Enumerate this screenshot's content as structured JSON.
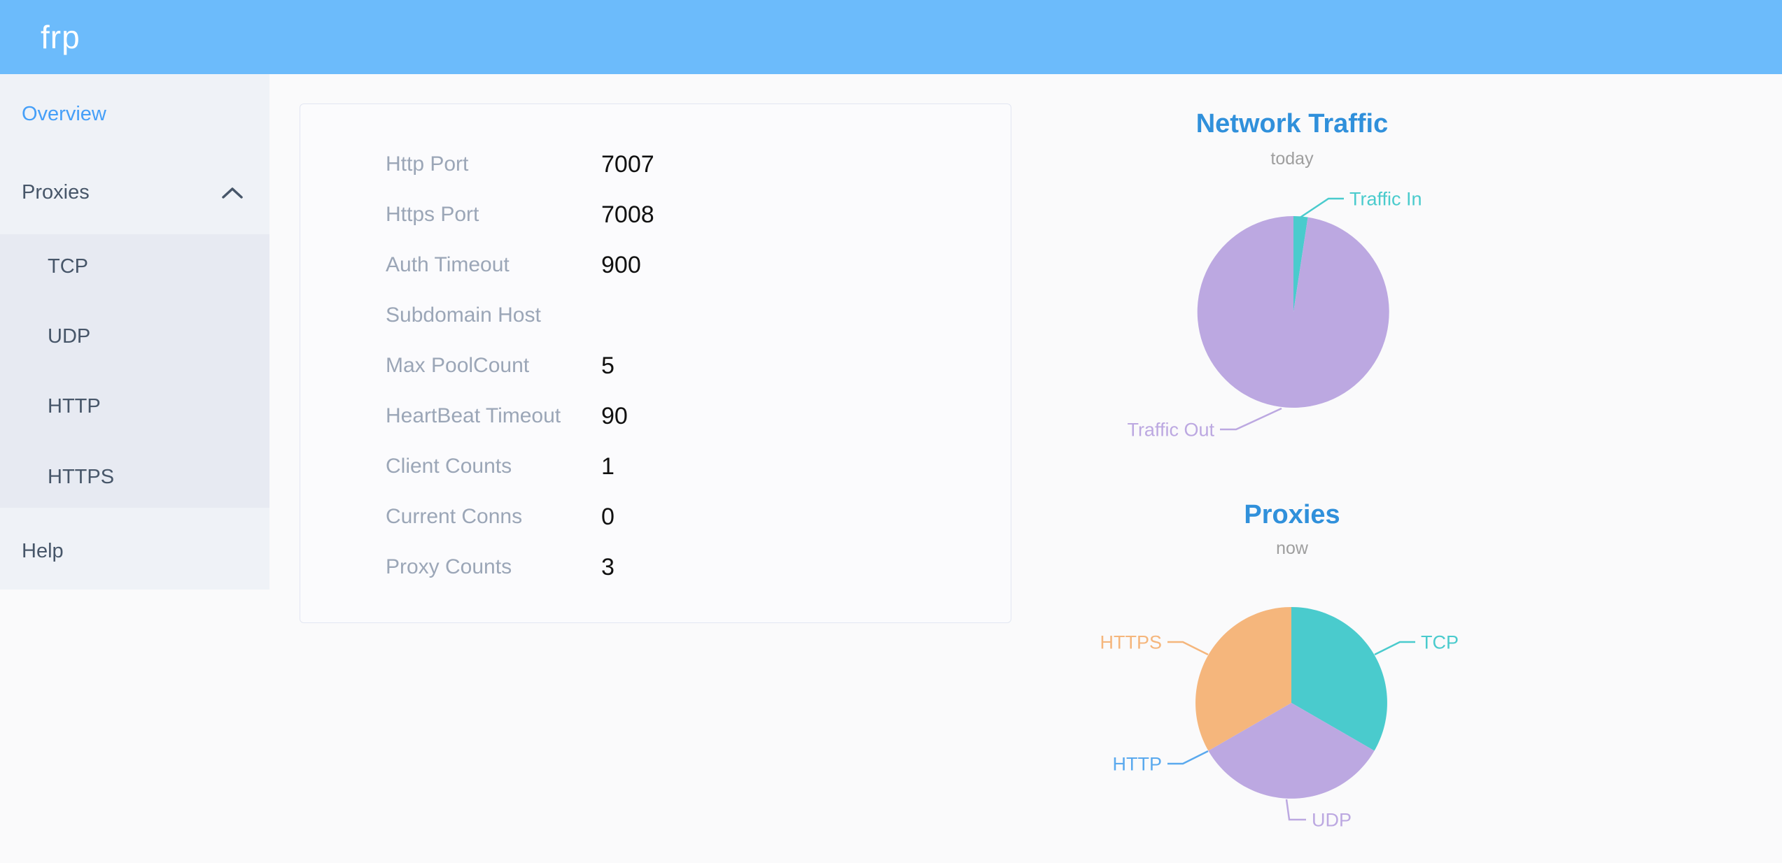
{
  "header": {
    "logo_text": "frp"
  },
  "sidebar": {
    "items": [
      {
        "label": "Overview",
        "active": true
      },
      {
        "label": "Proxies",
        "expanded": true
      },
      {
        "label": "TCP"
      },
      {
        "label": "UDP"
      },
      {
        "label": "HTTP"
      },
      {
        "label": "HTTPS"
      },
      {
        "label": "Help"
      }
    ]
  },
  "server_info": {
    "rows": [
      {
        "label": "Http Port",
        "value": "7007"
      },
      {
        "label": "Https Port",
        "value": "7008"
      },
      {
        "label": "Auth Timeout",
        "value": "900"
      },
      {
        "label": "Subdomain Host",
        "value": ""
      },
      {
        "label": "Max PoolCount",
        "value": "5"
      },
      {
        "label": "HeartBeat Timeout",
        "value": "90"
      },
      {
        "label": "Client Counts",
        "value": "1"
      },
      {
        "label": "Current Conns",
        "value": "0"
      },
      {
        "label": "Proxy Counts",
        "value": "3"
      }
    ]
  },
  "chart_data": [
    {
      "id": "network-traffic",
      "type": "pie",
      "title": "Network Traffic",
      "subtitle": "today",
      "legend_position": "none",
      "series": [
        {
          "name": "Traffic In",
          "value": 2.4,
          "unit": "pct",
          "color": "#4ACBCD"
        },
        {
          "name": "Traffic Out",
          "value": 97.6,
          "unit": "pct",
          "color": "#BCA8E1"
        }
      ],
      "labels": [
        {
          "series": 0,
          "line": [
            [
              306,
              62
            ],
            [
              348,
              34
            ],
            [
              370,
              34
            ]
          ],
          "text": [
            378,
            34
          ],
          "anchor": "start"
        },
        {
          "series": 1,
          "line": [
            [
              281,
              334
            ],
            [
              216,
              364
            ],
            [
              193,
              364
            ]
          ],
          "text": [
            185,
            364
          ],
          "anchor": "end"
        }
      ]
    },
    {
      "id": "proxies",
      "type": "pie",
      "title": "Proxies",
      "subtitle": "now",
      "legend_position": "none",
      "series": [
        {
          "name": "TCP",
          "value": 1,
          "color": "#4ACBCD"
        },
        {
          "name": "UDP",
          "value": 1,
          "color": "#BCA8E1"
        },
        {
          "name": "HTTP",
          "value": 0,
          "color": "#5AA9EE"
        },
        {
          "name": "HTTPS",
          "value": 1,
          "color": "#F5B67C"
        }
      ],
      "labels": [
        {
          "series": 0,
          "line": [
            [
              414,
              91
            ],
            [
              450,
              73
            ],
            [
              472,
              73
            ]
          ],
          "text": [
            480,
            73
          ],
          "anchor": "start"
        },
        {
          "series": 3,
          "line": [
            [
              176,
              91
            ],
            [
              140,
              73
            ],
            [
              118,
              73
            ]
          ],
          "text": [
            110,
            73
          ],
          "anchor": "end"
        },
        {
          "series": 2,
          "line": [
            [
              176,
              229
            ],
            [
              140,
              247
            ],
            [
              118,
              247
            ]
          ],
          "text": [
            110,
            247
          ],
          "anchor": "end"
        },
        {
          "series": 1,
          "line": [
            [
              288,
              298
            ],
            [
              292,
              327
            ],
            [
              316,
              327
            ]
          ],
          "text": [
            324,
            327
          ],
          "anchor": "start"
        }
      ]
    }
  ]
}
